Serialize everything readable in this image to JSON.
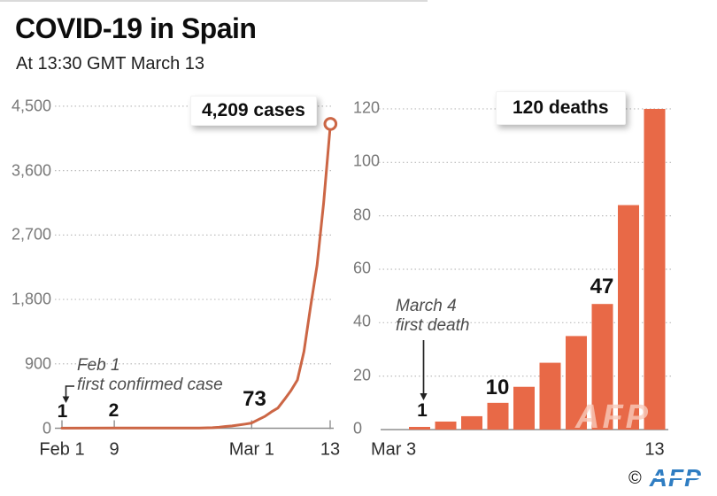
{
  "header": {
    "title": "COVID-19 in Spain",
    "subtitle": "At 13:30 GMT March 13"
  },
  "colors": {
    "line": "#cc6645",
    "bar": "#e86947",
    "grid": "#bdbdbd",
    "axis": "#8f8f8f",
    "y_label": "#787878",
    "x_label": "#2d2d2d",
    "annotation": "#4c4c4c",
    "value_label": "#121212",
    "afp_blue": "#2f7dc2"
  },
  "watermark": {
    "text": "AFP"
  },
  "footer": {
    "copyright": "©",
    "agency": "AFP"
  },
  "chart_data": [
    {
      "name": "Confirmed cases",
      "type": "line",
      "badge": "4,209 cases",
      "ylim": [
        0,
        4500
      ],
      "grid": "dotted",
      "end_marker": "open-circle",
      "yticks": [
        {
          "label": "0",
          "value": 0
        },
        {
          "label": "900",
          "value": 900
        },
        {
          "label": "1,800",
          "value": 1800
        },
        {
          "label": "2,700",
          "value": 2700
        },
        {
          "label": "3,600",
          "value": 3600
        },
        {
          "label": "4,500",
          "value": 4500
        }
      ],
      "xticks": [
        {
          "label": "Feb 1",
          "day": 0
        },
        {
          "label": "9",
          "day": 8
        },
        {
          "label": "Mar 1",
          "day": 29
        },
        {
          "label": "13",
          "day": 41
        }
      ],
      "points": [
        {
          "date": "Feb 1",
          "day": 0,
          "value": 1
        },
        {
          "date": "Feb 9",
          "day": 8,
          "value": 2
        },
        {
          "date": "Feb 17",
          "day": 16,
          "value": 2
        },
        {
          "date": "Feb 22",
          "day": 21,
          "value": 3
        },
        {
          "date": "Feb 24",
          "day": 23,
          "value": 8
        },
        {
          "date": "Feb 25",
          "day": 24,
          "value": 13
        },
        {
          "date": "Feb 26",
          "day": 25,
          "value": 25
        },
        {
          "date": "Feb 27",
          "day": 26,
          "value": 32
        },
        {
          "date": "Feb 28",
          "day": 27,
          "value": 45
        },
        {
          "date": "Feb 29",
          "day": 28,
          "value": 58
        },
        {
          "date": "Mar 1",
          "day": 29,
          "value": 73
        },
        {
          "date": "Mar 2",
          "day": 30,
          "value": 120
        },
        {
          "date": "Mar 3",
          "day": 31,
          "value": 165
        },
        {
          "date": "Mar 4",
          "day": 32,
          "value": 228
        },
        {
          "date": "Mar 5",
          "day": 33,
          "value": 282
        },
        {
          "date": "Mar 6",
          "day": 34,
          "value": 401
        },
        {
          "date": "Mar 7",
          "day": 35,
          "value": 525
        },
        {
          "date": "Mar 8",
          "day": 36,
          "value": 674
        },
        {
          "date": "Mar 9",
          "day": 37,
          "value": 1073
        },
        {
          "date": "Mar 10",
          "day": 38,
          "value": 1695
        },
        {
          "date": "Mar 11",
          "day": 39,
          "value": 2277
        },
        {
          "date": "Mar 12",
          "day": 40,
          "value": 3146
        },
        {
          "date": "Mar 13",
          "day": 41,
          "value": 4209
        }
      ],
      "value_labels": [
        {
          "text": "1",
          "date": "Feb 1"
        },
        {
          "text": "2",
          "date": "Feb 9"
        },
        {
          "text": "73",
          "date": "Mar 1"
        }
      ],
      "annotation": {
        "line1": "Feb 1",
        "line2": "first confirmed case"
      }
    },
    {
      "name": "Deaths",
      "type": "bar",
      "badge": "120 deaths",
      "ylim": [
        0,
        120
      ],
      "grid": "dotted",
      "yticks": [
        {
          "label": "0",
          "value": 0
        },
        {
          "label": "20",
          "value": 20
        },
        {
          "label": "40",
          "value": 40
        },
        {
          "label": "60",
          "value": 60
        },
        {
          "label": "80",
          "value": 80
        },
        {
          "label": "100",
          "value": 100
        },
        {
          "label": "120",
          "value": 120
        }
      ],
      "categories": [
        "Mar 3",
        "Mar 4",
        "Mar 5",
        "Mar 6",
        "Mar 7",
        "Mar 8",
        "Mar 9",
        "Mar 10",
        "Mar 11",
        "Mar 12",
        "Mar 13"
      ],
      "values": [
        0,
        1,
        3,
        5,
        10,
        16,
        25,
        35,
        47,
        84,
        120
      ],
      "xticks": [
        {
          "label": "Mar 3",
          "index": 0
        },
        {
          "label": "13",
          "index": 10
        }
      ],
      "value_labels": [
        {
          "text": "1",
          "index": 1
        },
        {
          "text": "10",
          "index": 4
        },
        {
          "text": "47",
          "index": 8
        }
      ],
      "annotation": {
        "line1": "March 4",
        "line2": "first death"
      }
    }
  ]
}
